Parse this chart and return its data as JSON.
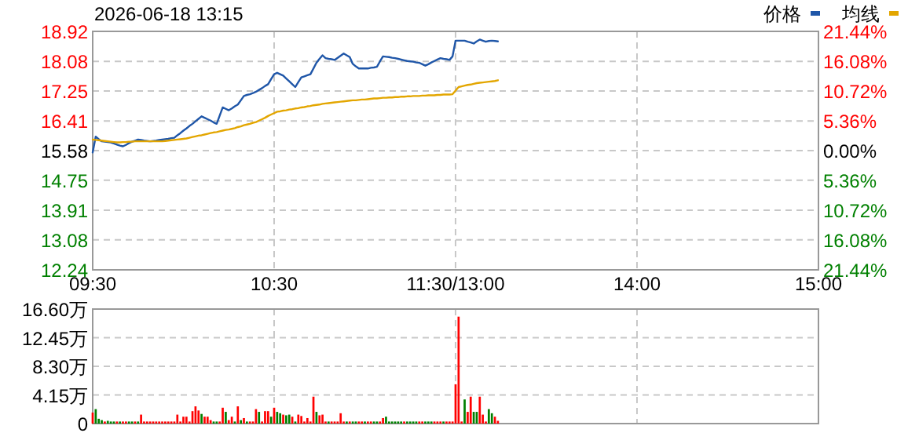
{
  "chart_data": [
    {
      "type": "line",
      "title": "2026-06-18 13:15",
      "categories": [
        "09:30",
        null,
        null,
        null,
        null,
        null,
        null,
        null,
        null,
        null,
        null,
        null,
        null,
        null,
        null,
        null,
        null,
        null,
        null,
        null,
        null,
        null,
        null,
        null,
        null,
        null,
        null,
        null,
        null,
        null,
        null,
        null,
        null,
        null,
        null,
        null,
        null,
        null,
        null,
        null,
        null,
        null,
        null,
        null,
        null,
        null,
        null,
        null,
        null,
        null,
        null,
        null,
        null,
        null,
        null,
        null,
        null,
        null,
        null,
        null,
        "10:30",
        null,
        null,
        null,
        null,
        null,
        null,
        null,
        null,
        null,
        null,
        null,
        null,
        null,
        null,
        null,
        null,
        null,
        null,
        null,
        null,
        null,
        null,
        null,
        null,
        null,
        null,
        null,
        null,
        null,
        null,
        null,
        null,
        null,
        null,
        null,
        null,
        null,
        null,
        null,
        null,
        null,
        null,
        null,
        null,
        null,
        null,
        null,
        null,
        null,
        null,
        null,
        null,
        null,
        null,
        null,
        null,
        null,
        null,
        null,
        "11:30/13:00",
        null,
        null,
        null,
        null,
        null,
        null,
        null,
        null,
        null,
        null,
        null,
        null,
        null,
        null,
        null,
        null,
        null,
        null,
        null,
        null,
        null,
        null,
        null,
        null,
        null,
        null,
        null,
        null,
        null,
        null,
        null,
        null,
        null,
        null,
        null,
        null,
        null,
        null,
        null,
        null,
        null,
        null,
        null,
        null,
        null,
        null,
        null,
        null,
        null,
        null,
        null,
        null,
        null,
        null,
        null,
        null,
        null,
        null,
        null,
        "14:00",
        null,
        null,
        null,
        null,
        null,
        null,
        null,
        null,
        null,
        null,
        null,
        null,
        null,
        null,
        null,
        null,
        null,
        null,
        null,
        null,
        null,
        null,
        null,
        null,
        null,
        null,
        null,
        null,
        null,
        null,
        null,
        null,
        null,
        null,
        null,
        null,
        null,
        null,
        null,
        null,
        null,
        null,
        null,
        null,
        null,
        null,
        null,
        null,
        null,
        null,
        null,
        null,
        null,
        null,
        null,
        null,
        null,
        null,
        null,
        "15:00"
      ],
      "ylim": [
        12.24,
        18.92
      ],
      "yticks": [
        12.24,
        13.08,
        13.91,
        14.75,
        15.58,
        16.41,
        17.25,
        18.08,
        18.92
      ],
      "y2lim": [
        -21.44,
        21.44
      ],
      "y2ticks": [
        {
          "value": -21.44,
          "label": "21.44%"
        },
        {
          "value": -16.08,
          "label": "16.08%"
        },
        {
          "value": -10.72,
          "label": "10.72%"
        },
        {
          "value": -5.36,
          "label": "5.36%"
        },
        {
          "value": 0,
          "label": "0.00%"
        },
        {
          "value": 5.36,
          "label": "5.36%"
        },
        {
          "value": 10.72,
          "label": "10.72%"
        },
        {
          "value": 16.08,
          "label": "16.08%"
        },
        {
          "value": 21.44,
          "label": "21.44%"
        }
      ],
      "grid": true,
      "legend": "top right",
      "series": [
        {
          "name": "价格",
          "color": "#1f56a8",
          "values": [
            15.53,
            15.97,
            15.9,
            15.84,
            15.83,
            15.82,
            15.81,
            15.78,
            15.75,
            15.72,
            15.7,
            15.74,
            15.79,
            15.83,
            15.86,
            15.89,
            15.88,
            15.86,
            15.85,
            15.84,
            15.85,
            15.86,
            15.88,
            15.89,
            15.9,
            15.91,
            15.93,
            15.94,
            16.01,
            16.07,
            16.14,
            16.2,
            16.27,
            16.33,
            16.4,
            16.47,
            16.54,
            16.5,
            16.46,
            16.42,
            16.37,
            16.33,
            16.56,
            16.79,
            16.75,
            16.71,
            16.76,
            16.82,
            16.87,
            16.99,
            17.11,
            17.14,
            17.16,
            17.19,
            17.23,
            17.28,
            17.33,
            17.39,
            17.44,
            17.58,
            17.72,
            17.76,
            17.72,
            17.68,
            17.6,
            17.52,
            17.44,
            17.36,
            17.5,
            17.63,
            17.66,
            17.69,
            17.72,
            17.88,
            18.04,
            18.15,
            18.25,
            18.17,
            18.15,
            18.14,
            18.12,
            18.18,
            18.24,
            18.3,
            18.25,
            18.2,
            18.01,
            17.94,
            17.88,
            17.88,
            17.88,
            17.88,
            17.9,
            17.91,
            17.93,
            18.08,
            18.22,
            18.21,
            18.2,
            18.18,
            18.17,
            18.15,
            18.13,
            18.11,
            18.09,
            18.08,
            18.07,
            18.05,
            18.04,
            18,
            17.96,
            18,
            18.05,
            18.09,
            18.13,
            18.17,
            18.15,
            18.14,
            18.12,
            18.22,
            18.66,
            18.66,
            18.66,
            18.66,
            18.63,
            18.61,
            18.58,
            18.64,
            18.69,
            18.66,
            18.63,
            18.65,
            18.66,
            18.65,
            18.64,
            null,
            null,
            null,
            null,
            null,
            null,
            null,
            null,
            null,
            null,
            null,
            null,
            null,
            null,
            null,
            null,
            null,
            null,
            null,
            null,
            null,
            null,
            null,
            null,
            null,
            null,
            null,
            null,
            null,
            null,
            null,
            null,
            null,
            null,
            null,
            null,
            null,
            null,
            null,
            null,
            null,
            null,
            null,
            null,
            null,
            null,
            null,
            null,
            null,
            null,
            null,
            null,
            null,
            null,
            null,
            null,
            null,
            null,
            null,
            null,
            null,
            null,
            null,
            null,
            null,
            null,
            null,
            null,
            null,
            null,
            null,
            null,
            null,
            null,
            null,
            null,
            null,
            null,
            null,
            null,
            null,
            null,
            null,
            null,
            null,
            null,
            null,
            null,
            null,
            null,
            null,
            null,
            null,
            null,
            null,
            null,
            null,
            null,
            null,
            null,
            null,
            null,
            null,
            null,
            null,
            null
          ]
        },
        {
          "name": "均线",
          "color": "#e3a600",
          "values": [
            15.89,
            15.88,
            15.87,
            15.86,
            15.85,
            15.84,
            15.83,
            15.82,
            15.81,
            15.81,
            15.82,
            15.82,
            15.83,
            15.83,
            15.84,
            15.84,
            15.84,
            15.84,
            15.84,
            15.84,
            15.84,
            15.84,
            15.84,
            15.84,
            15.85,
            15.86,
            15.87,
            15.88,
            15.89,
            15.9,
            15.91,
            15.92,
            15.94,
            15.96,
            15.98,
            16,
            16.01,
            16.03,
            16.05,
            16.07,
            16.09,
            16.1,
            16.12,
            16.14,
            16.16,
            16.17,
            16.19,
            16.21,
            16.24,
            16.26,
            16.29,
            16.31,
            16.33,
            16.36,
            16.38,
            16.42,
            16.46,
            16.5,
            16.55,
            16.59,
            16.63,
            16.67,
            16.68,
            16.7,
            16.71,
            16.73,
            16.74,
            16.76,
            16.77,
            16.79,
            16.8,
            16.82,
            16.83,
            16.85,
            16.86,
            16.87,
            16.89,
            16.9,
            16.91,
            16.92,
            16.93,
            16.94,
            16.95,
            16.96,
            16.97,
            16.98,
            16.99,
            16.99,
            17,
            17.01,
            17.01,
            17.02,
            17.03,
            17.04,
            17.04,
            17.05,
            17.06,
            17.06,
            17.07,
            17.07,
            17.08,
            17.08,
            17.09,
            17.09,
            17.1,
            17.1,
            17.11,
            17.11,
            17.11,
            17.12,
            17.12,
            17.13,
            17.13,
            17.13,
            17.14,
            17.14,
            17.15,
            17.15,
            17.15,
            17.16,
            17.26,
            17.36,
            17.38,
            17.4,
            17.42,
            17.43,
            17.45,
            17.47,
            17.48,
            17.49,
            17.5,
            17.51,
            17.52,
            17.53,
            17.55,
            null,
            null,
            null,
            null,
            null,
            null,
            null,
            null,
            null,
            null,
            null,
            null,
            null,
            null,
            null,
            null,
            null,
            null,
            null,
            null,
            null,
            null,
            null,
            null,
            null,
            null,
            null,
            null,
            null,
            null,
            null,
            null,
            null,
            null,
            null,
            null,
            null,
            null,
            null,
            null,
            null,
            null,
            null,
            null,
            null,
            null,
            null,
            null,
            null,
            null,
            null,
            null,
            null,
            null,
            null,
            null,
            null,
            null,
            null,
            null,
            null,
            null,
            null,
            null,
            null,
            null,
            null,
            null,
            null,
            null,
            null,
            null,
            null,
            null,
            null,
            null,
            null,
            null,
            null,
            null,
            null,
            null,
            null,
            null,
            null,
            null,
            null,
            null,
            null,
            null,
            null,
            null,
            null,
            null,
            null,
            null,
            null,
            null,
            null,
            null,
            null,
            null,
            null,
            null,
            null,
            null
          ]
        }
      ]
    },
    {
      "type": "bar",
      "tick_labels": "y",
      "grid": true,
      "categories": [
        null,
        null,
        null,
        null,
        null,
        null,
        null,
        null,
        null,
        null,
        null,
        null,
        null,
        null,
        null,
        null,
        null,
        null,
        null,
        null,
        null,
        null,
        null,
        null,
        null,
        null,
        null,
        null,
        null,
        null,
        null,
        null,
        null,
        null,
        null,
        null,
        null,
        null,
        null,
        null,
        null,
        null,
        null,
        null,
        null,
        null,
        null,
        null,
        null,
        null,
        null,
        null,
        null,
        null,
        null,
        null,
        null,
        null,
        null,
        null,
        null,
        null,
        null,
        null,
        null,
        null,
        null,
        null,
        null,
        null,
        null,
        null,
        null,
        null,
        null,
        null,
        null,
        null,
        null,
        null,
        null,
        null,
        null,
        null,
        null,
        null,
        null,
        null,
        null,
        null,
        null,
        null,
        null,
        null,
        null,
        null,
        null,
        null,
        null,
        null,
        null,
        null,
        null,
        null,
        null,
        null,
        null,
        null,
        null,
        null,
        null,
        null,
        null,
        null,
        null,
        null,
        null,
        null,
        null,
        null,
        null,
        null,
        null,
        null,
        null,
        null,
        null,
        null,
        null,
        null,
        null,
        null,
        null,
        null,
        null,
        null,
        null,
        null,
        null,
        null,
        null,
        null,
        null,
        null,
        null,
        null,
        null,
        null,
        null,
        null,
        null,
        null,
        null,
        null,
        null,
        null,
        null,
        null,
        null,
        null,
        null,
        null,
        null,
        null,
        null,
        null,
        null,
        null,
        null,
        null,
        null,
        null,
        null,
        null,
        null,
        null,
        null,
        null,
        null,
        null,
        null,
        null,
        null,
        null,
        null,
        null,
        null,
        null,
        null,
        null,
        null,
        null,
        null,
        null,
        null,
        null,
        null,
        null,
        null,
        null,
        null,
        null,
        null,
        null,
        null,
        null,
        null,
        null,
        null,
        null,
        null,
        null,
        null,
        null,
        null,
        null,
        null,
        null,
        null,
        null,
        null,
        null,
        null,
        null,
        null,
        null,
        null,
        null,
        null,
        null,
        null,
        null,
        null,
        null,
        null,
        null,
        null,
        null,
        null,
        null,
        null
      ],
      "ylim": [
        0,
        16.6
      ],
      "yticks": [
        0,
        {
          "value": 4.15,
          "label": "4.15万"
        },
        {
          "value": 8.3,
          "label": "8.30万"
        },
        {
          "value": 12.45,
          "label": "12.45万"
        },
        {
          "value": 16.6,
          "label": "16.60万"
        }
      ],
      "values": [
        1.6,
        2.1,
        0.7,
        0.5,
        0.3,
        0.4,
        0.3,
        0.3,
        0.3,
        0.3,
        0.3,
        0.3,
        0.3,
        0.3,
        0.3,
        0.3,
        1.3,
        0.3,
        0.3,
        0.3,
        0.3,
        0.3,
        0.3,
        0.3,
        0.3,
        0.3,
        0.3,
        0.3,
        1.3,
        0.3,
        1.0,
        1.0,
        0.3,
        1.8,
        2.5,
        1.9,
        1.4,
        1.0,
        1.0,
        0.5,
        0.3,
        0.3,
        0.3,
        2.3,
        1.7,
        0.5,
        1.0,
        0.3,
        2.5,
        0.5,
        0.8,
        0.3,
        0.3,
        0.3,
        2.1,
        1.7,
        0.3,
        1.8,
        1.8,
        1.0,
        2.3,
        1.7,
        1.5,
        1.3,
        1.2,
        1.3,
        1.0,
        0.3,
        1.3,
        1.1,
        0.3,
        0.8,
        0.3,
        3.9,
        1.7,
        1.2,
        1.3,
        0.3,
        0.3,
        0.3,
        0.3,
        0.3,
        1.5,
        0.3,
        0.3,
        0.3,
        0.3,
        0.3,
        0.3,
        0.3,
        0.3,
        0.3,
        0.3,
        0.3,
        0.3,
        0.3,
        0.8,
        1.0,
        0.3,
        0.3,
        0.3,
        0.3,
        0.3,
        0.3,
        0.3,
        0.3,
        0.3,
        0.3,
        0.3,
        0.3,
        0.3,
        0.3,
        0.3,
        0.3,
        0.3,
        0.3,
        0.3,
        0.3,
        0.3,
        0.3,
        5.7,
        15.5,
        0.3,
        3.5,
        1.7,
        3.9,
        1.7,
        1.7,
        3.9,
        1.3,
        0.3,
        2.1,
        1.5,
        1.0,
        0.4,
        null,
        null,
        null,
        null,
        null,
        null,
        null,
        null,
        null,
        null,
        null,
        null,
        null,
        null,
        null,
        null,
        null,
        null,
        null,
        null,
        null,
        null,
        null,
        null,
        null,
        null,
        null,
        null,
        null,
        null,
        null,
        null,
        null,
        null,
        null,
        null,
        null,
        null,
        null,
        null,
        null,
        null,
        null,
        null,
        null,
        null,
        null,
        null,
        null,
        null,
        null,
        null,
        null,
        null,
        null,
        null,
        null,
        null,
        null,
        null,
        null,
        null,
        null,
        null,
        null,
        null,
        null,
        null,
        null,
        null,
        null,
        null,
        null,
        null,
        null,
        null,
        null,
        null,
        null,
        null,
        null,
        null,
        null,
        null,
        null,
        null,
        null,
        null,
        null,
        null,
        null,
        null,
        null,
        null,
        null,
        null,
        null,
        null,
        null,
        null,
        null,
        null,
        null,
        null,
        null,
        null
      ],
      "colors": [
        "#ff0000",
        "#008000",
        "#008000",
        "#008000",
        "#ff0000",
        "#008000",
        "#008000",
        "#008000",
        "#ff0000",
        "#008000",
        "#ff0000",
        "#ff0000",
        "#008000",
        "#008000",
        "#ff0000",
        "#008000",
        "#ff0000",
        "#ff0000",
        "#ff0000",
        "#ff0000",
        "#ff0000",
        "#ff0000",
        "#ff0000",
        "#ff0000",
        "#ff0000",
        "#ff0000",
        "#ff0000",
        "#ff0000",
        "#ff0000",
        "#ff0000",
        "#ff0000",
        "#ff0000",
        "#ff0000",
        "#ff0000",
        "#ff0000",
        "#ff0000",
        "#008000",
        "#ff0000",
        "#ff0000",
        "#ff0000",
        "#008000",
        "#008000",
        "#ff0000",
        "#ff0000",
        "#008000",
        "#ff0000",
        "#ff0000",
        "#008000",
        "#ff0000",
        "#008000",
        "#ff0000",
        "#008000",
        "#ff0000",
        "#ff0000",
        "#ff0000",
        "#008000",
        "#ff0000",
        "#ff0000",
        "#ff0000",
        "#008000",
        "#ff0000",
        "#008000",
        "#008000",
        "#ff0000",
        "#008000",
        "#008000",
        "#ff0000",
        "#008000",
        "#ff0000",
        "#ff0000",
        "#ff0000",
        "#ff0000",
        "#ff0000",
        "#ff0000",
        "#008000",
        "#ff0000",
        "#ff0000",
        "#ff0000",
        "#008000",
        "#ff0000",
        "#ff0000",
        "#ff0000",
        "#ff0000",
        "#ff0000",
        "#008000",
        "#ff0000",
        "#008000",
        "#008000",
        "#ff0000",
        "#ff0000",
        "#008000",
        "#ff0000",
        "#ff0000",
        "#008000",
        "#008000",
        "#ff0000",
        "#ff0000",
        "#008000",
        "#008000",
        "#008000",
        "#008000",
        "#008000",
        "#008000",
        "#ff0000",
        "#008000",
        "#008000",
        "#008000",
        "#008000",
        "#ff0000",
        "#ff0000",
        "#008000",
        "#008000",
        "#008000",
        "#ff0000",
        "#ff0000",
        "#ff0000",
        "#008000",
        "#ff0000",
        "#ff0000",
        "#ff0000",
        "#ff0000",
        "#ff0000",
        "#ff0000",
        "#008000",
        "#ff0000",
        "#ff0000",
        "#008000",
        "#008000",
        "#ff0000",
        "#ff0000",
        "#ff0000",
        "#008000",
        "#008000",
        "#ff0000",
        "#ff0000",
        null,
        null,
        null,
        null,
        null,
        null,
        null,
        null,
        null,
        null,
        null,
        null,
        null,
        null,
        null,
        null,
        null,
        null,
        null,
        null,
        null,
        null,
        null,
        null,
        null,
        null,
        null,
        null,
        null,
        null,
        null,
        null,
        null,
        null,
        null,
        null,
        null,
        null,
        null,
        null,
        null,
        null,
        null,
        null,
        null,
        null,
        null,
        null,
        null,
        null,
        null,
        null,
        null,
        null,
        null,
        null,
        null,
        null,
        null,
        null,
        null,
        null,
        null,
        null,
        null,
        null,
        null,
        null,
        null,
        null,
        null,
        null,
        null,
        null,
        null,
        null,
        null,
        null,
        null,
        null,
        null,
        null,
        null,
        null,
        null,
        null,
        null,
        null,
        null,
        null,
        null,
        null,
        null,
        null,
        null,
        null,
        null,
        null,
        null,
        null,
        null,
        null,
        null,
        null,
        null,
        null
      ]
    }
  ]
}
